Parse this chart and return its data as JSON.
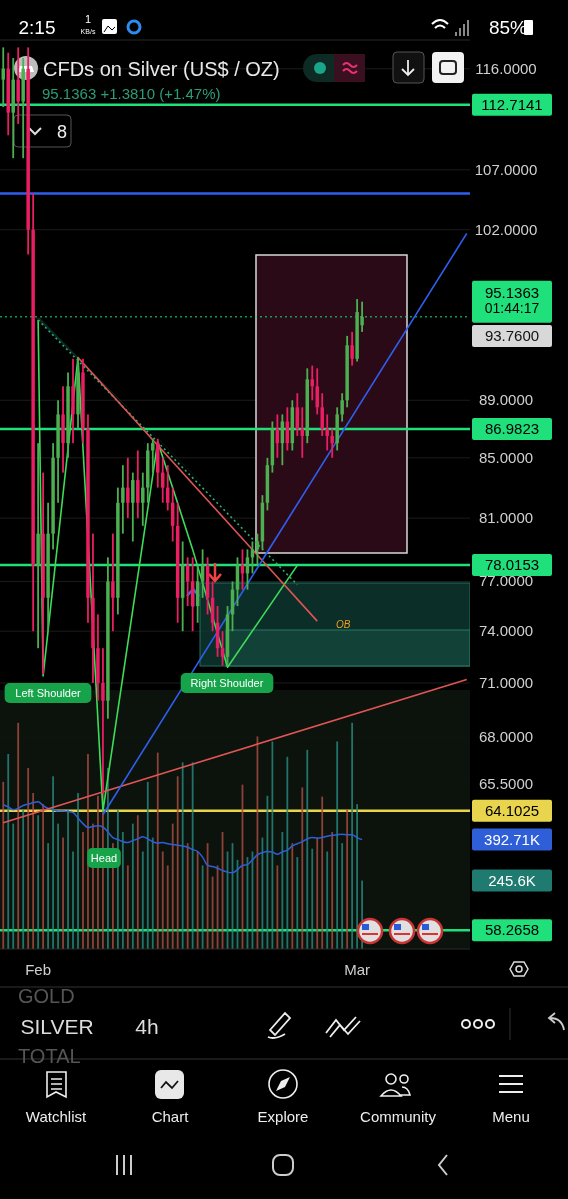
{
  "chart_data": {
    "type": "candlestick",
    "title": "CFDs on Silver (US$ / OZ)",
    "subtitle": "95.1363 +1.3810 (+1.47%)",
    "categories": [
      null,
      null,
      null,
      null,
      null,
      null,
      null,
      "Feb",
      null,
      null,
      null,
      null,
      null,
      null,
      null,
      null,
      null,
      null,
      null,
      null,
      null,
      null,
      null,
      null,
      null,
      null,
      null,
      null,
      null,
      null,
      null,
      null,
      null,
      null,
      null,
      null,
      null,
      null,
      null,
      null,
      null,
      null,
      null,
      null,
      null,
      null,
      null,
      null,
      null,
      null,
      null,
      null,
      null,
      null,
      null,
      null,
      null,
      null,
      null,
      null,
      null,
      null,
      null,
      null,
      null,
      null,
      null,
      null,
      null,
      null,
      null,
      "Mar",
      null,
      null,
      null,
      null,
      null,
      null,
      null,
      null,
      null,
      null,
      null,
      null,
      null,
      null,
      null,
      null,
      null,
      null,
      null,
      null,
      null,
      null
    ],
    "log": true,
    "ylim": [
      57.4,
      118.7
    ],
    "yticks": [
      {
        "value": 116,
        "label": "116.0000"
      },
      {
        "value": 107,
        "label": "107.0000"
      },
      {
        "value": 102,
        "label": "102.0000"
      },
      {
        "value": 89,
        "label": "89.0000"
      },
      {
        "value": 85,
        "label": "85.0000"
      },
      {
        "value": 81,
        "label": "81.0000"
      },
      {
        "value": 77,
        "label": "77.0000"
      },
      {
        "value": 74,
        "label": "74.0000"
      },
      {
        "value": 71,
        "label": "71.0000"
      },
      {
        "value": 68,
        "label": "68.0000"
      },
      {
        "value": 65.5,
        "label": "65.5000"
      }
    ],
    "y2lim": [
      0,
      3263
    ],
    "y2ticks": [
      {
        "value": 392.71,
        "label": "392.71K"
      },
      {
        "value": 245.6,
        "label": "245.6K"
      }
    ],
    "grid": "y",
    "series": [
      {
        "ohlc": [
          [
            115,
            118,
            112.5,
            116
          ],
          [
            116,
            117.5,
            110,
            112
          ],
          [
            112,
            117,
            108,
            115
          ],
          [
            115,
            118,
            111,
            113
          ],
          [
            113,
            117,
            108,
            116
          ],
          [
            116,
            118,
            100,
            102
          ],
          [
            102,
            105,
            74,
            78
          ],
          [
            78,
            86,
            73,
            80
          ],
          [
            80,
            84,
            71.5,
            76
          ],
          [
            76,
            82,
            74,
            80
          ],
          [
            80,
            86,
            79,
            85
          ],
          [
            85,
            89,
            82,
            88
          ],
          [
            88,
            90,
            84,
            86
          ],
          [
            86,
            91,
            85,
            90
          ],
          [
            90,
            92,
            86,
            88
          ],
          [
            88,
            92,
            87,
            91
          ],
          [
            91,
            92,
            86,
            87
          ],
          [
            87,
            88,
            74.5,
            76
          ],
          [
            76,
            80,
            71,
            73
          ],
          [
            73,
            75,
            70,
            71
          ],
          [
            71,
            73,
            65,
            70
          ],
          [
            70,
            78.5,
            69,
            77
          ],
          [
            77,
            80,
            74,
            76
          ],
          [
            76,
            83,
            75,
            82
          ],
          [
            82,
            84.5,
            80,
            83
          ],
          [
            83,
            85,
            81,
            82
          ],
          [
            82,
            84,
            79.5,
            83.5
          ],
          [
            83.5,
            85.5,
            81,
            82
          ],
          [
            82,
            84,
            80.5,
            83
          ],
          [
            83,
            86,
            82,
            85.5
          ],
          [
            85.5,
            86.3,
            84,
            86
          ],
          [
            86,
            86.3,
            83,
            84
          ],
          [
            84,
            85,
            82,
            83
          ],
          [
            83,
            84.5,
            81.5,
            82
          ],
          [
            82,
            83,
            79.5,
            80.5
          ],
          [
            80.5,
            82,
            74.5,
            76
          ],
          [
            76,
            79.5,
            74,
            78
          ],
          [
            78,
            78.5,
            75.5,
            77
          ],
          [
            77,
            78.5,
            74,
            75.5
          ],
          [
            75.5,
            78,
            74.5,
            77
          ],
          [
            77,
            79,
            76,
            78
          ],
          [
            78,
            78.5,
            75,
            76
          ],
          [
            76,
            77,
            74,
            74.5
          ],
          [
            74.5,
            75.5,
            72.5,
            73
          ],
          [
            73,
            74,
            72,
            72.5
          ],
          [
            72.5,
            75.5,
            72,
            75
          ],
          [
            75,
            77,
            74,
            76.5
          ],
          [
            76.5,
            78.5,
            75.5,
            78
          ],
          [
            78,
            79,
            76.5,
            77.5
          ],
          [
            77.5,
            79,
            76.5,
            78.5
          ],
          [
            78.5,
            79.5,
            77.5,
            79
          ],
          [
            79,
            80,
            78,
            79.5
          ],
          [
            79.5,
            82.5,
            79,
            82
          ],
          [
            82,
            85,
            81.5,
            84.5
          ],
          [
            84.5,
            87.5,
            84,
            87
          ],
          [
            87,
            88,
            85,
            86
          ],
          [
            86,
            88,
            84.5,
            87.5
          ],
          [
            87.5,
            88.5,
            85.5,
            86
          ],
          [
            86,
            89,
            85.5,
            88.5
          ],
          [
            88.5,
            89.5,
            86.5,
            87
          ],
          [
            87,
            88.5,
            85,
            86.5
          ],
          [
            86.5,
            91.3,
            86,
            90.5
          ],
          [
            90.5,
            91.5,
            89,
            90
          ],
          [
            90,
            91.3,
            88,
            88.5
          ],
          [
            88.5,
            89.5,
            86.5,
            87
          ],
          [
            87,
            88,
            85.5,
            86.5
          ],
          [
            86.5,
            87,
            85,
            86
          ],
          [
            86,
            88.5,
            85.5,
            88
          ],
          [
            88,
            89.5,
            87.5,
            89
          ],
          [
            89,
            93.7,
            88.5,
            93
          ],
          [
            93,
            94,
            91.5,
            92
          ],
          [
            92,
            96.5,
            91.8,
            95.5
          ],
          [
            94.5,
            96.3,
            94,
            95.1363
          ],
          null,
          null,
          null,
          null,
          null,
          null,
          null,
          null,
          null,
          null,
          null,
          null,
          null,
          null,
          null,
          null,
          null,
          null,
          null,
          null,
          null
        ],
        "colors": [
          "#4caf50",
          "#e91e63",
          "#4caf50",
          "#e91e63",
          "#4caf50",
          "#e91e63",
          "#e91e63",
          "#4caf50",
          "#e91e63",
          "#4caf50",
          "#4caf50",
          "#4caf50",
          "#e91e63",
          "#4caf50",
          "#e91e63",
          "#4caf50",
          "#e91e63",
          "#e91e63",
          "#e91e63",
          "#e91e63",
          "#e91e63",
          "#4caf50",
          "#e91e63",
          "#4caf50",
          "#4caf50",
          "#e91e63",
          "#4caf50",
          "#e91e63",
          "#4caf50",
          "#4caf50",
          "#4caf50",
          "#e91e63",
          "#e91e63",
          "#e91e63",
          "#e91e63",
          "#e91e63",
          "#4caf50",
          "#e91e63",
          "#e91e63",
          "#4caf50",
          "#4caf50",
          "#e91e63",
          "#e91e63",
          "#e91e63",
          "#e91e63",
          "#4caf50",
          "#4caf50",
          "#4caf50",
          "#e91e63",
          "#4caf50",
          "#4caf50",
          "#4caf50",
          "#4caf50",
          "#4caf50",
          "#4caf50",
          "#e91e63",
          "#4caf50",
          "#e91e63",
          "#4caf50",
          "#e91e63",
          "#e91e63",
          "#4caf50",
          "#e91e63",
          "#e91e63",
          "#e91e63",
          "#e91e63",
          "#e91e63",
          "#4caf50",
          "#4caf50",
          "#4caf50",
          "#e91e63",
          "#4caf50",
          "#4caf50",
          null,
          null,
          null,
          null,
          null,
          null,
          null,
          null,
          null,
          null,
          null,
          null,
          null,
          null,
          null,
          null,
          null,
          null,
          null,
          null,
          null
        ]
      },
      {
        "type": "bar",
        "axis": "y2",
        "values": [
          600,
          700,
          450,
          812,
          500,
          650,
          560,
          480,
          520,
          380,
          620,
          450,
          400,
          500,
          350,
          560,
          420,
          700,
          450,
          550,
          600,
          650,
          380,
          500,
          420,
          300,
          450,
          480,
          350,
          600,
          400,
          705,
          350,
          300,
          450,
          620,
          670,
          380,
          670,
          350,
          300,
          380,
          260,
          300,
          420,
          350,
          380,
          320,
          590,
          330,
          350,
          763,
          400,
          550,
          745,
          300,
          420,
          690,
          380,
          330,
          580,
          715,
          360,
          400,
          547,
          350,
          420,
          745,
          380,
          500,
          812,
          520,
          245.6,
          null,
          null,
          null,
          null,
          null,
          null,
          null,
          null,
          null,
          null,
          null,
          null,
          null,
          null,
          null,
          null,
          null,
          null,
          null,
          null,
          null
        ],
        "colors": [
          "#a34b40",
          "#26857a",
          "#26857a",
          "#a34b40",
          "#26857a",
          "#a34b40",
          "#a34b40",
          "#26857a",
          "#a34b40",
          "#26857a",
          "#26857a",
          "#26857a",
          "#a34b40",
          "#26857a",
          "#26857a",
          "#26857a",
          "#a34b40",
          "#a34b40",
          "#a34b40",
          "#a34b40",
          "#a34b40",
          "#26857a",
          "#a34b40",
          "#26857a",
          "#26857a",
          "#a34b40",
          "#26857a",
          "#a34b40",
          "#26857a",
          "#26857a",
          "#26857a",
          "#a34b40",
          "#a34b40",
          "#a34b40",
          "#a34b40",
          "#a34b40",
          "#26857a",
          "#a34b40",
          "#26857a",
          "#a34b40",
          "#26857a",
          "#a34b40",
          "#a34b40",
          "#a34b40",
          "#a34b40",
          "#26857a",
          "#26857a",
          "#26857a",
          "#a34b40",
          "#26857a",
          "#26857a",
          "#a34b40",
          "#26857a",
          "#26857a",
          "#26857a",
          "#a34b40",
          "#26857a",
          "#26857a",
          "#a34b40",
          "#26857a",
          "#a34b40",
          "#26857a",
          "#26857a",
          "#a34b40",
          "#a34b40",
          "#26857a",
          "#a34b40",
          "#26857a",
          "#26857a",
          "#a34b40",
          "#26857a",
          "#26857a",
          "#26857a",
          null,
          null,
          null,
          null,
          null,
          null,
          null,
          null,
          null,
          null,
          null,
          null,
          null,
          null,
          null,
          null,
          null,
          null,
          null,
          null,
          null
        ]
      },
      {
        "type": "line",
        "axis": "y2",
        "color": "#2f5fd8",
        "values": [
          518,
          510,
          500,
          505,
          515,
          520,
          525,
          529,
          515,
          505,
          500,
          495,
          495,
          493,
          490,
          470,
          450,
          436,
          440,
          442,
          438,
          420,
          400,
          393,
          385,
          382,
          390,
          395,
          403,
          395,
          385,
          380,
          382,
          378,
          375,
          372,
          370,
          365,
          357,
          350,
          330,
          300,
          296,
          290,
          282,
          276,
          274,
          285,
          300,
          303,
          320,
          338,
          346,
          350,
          348,
          340,
          349,
          355,
          370,
          378,
          385,
          395,
          400,
          398,
          400,
          405,
          408,
          410,
          412,
          410,
          410,
          400,
          392.71,
          null,
          null,
          null,
          null,
          null,
          null,
          null,
          null,
          null,
          null,
          null,
          null,
          null,
          null,
          null,
          null,
          null,
          null,
          null,
          null,
          null
        ]
      },
      {
        "type": "line",
        "color": "#3ddc57",
        "values": [
          null,
          null,
          null,
          null,
          null,
          null,
          null,
          94.9,
          71.4,
          null,
          null,
          null,
          null,
          null,
          null,
          92.1,
          null,
          null,
          null,
          null,
          64.1,
          null,
          null,
          null,
          null,
          null,
          null,
          null,
          null,
          null,
          null,
          86.1,
          null,
          null,
          null,
          null,
          null,
          null,
          79.0,
          null,
          null,
          null,
          null,
          null,
          null,
          71.9,
          null,
          null,
          null,
          null,
          null,
          null,
          null,
          null,
          null,
          null,
          null,
          null,
          null,
          78.0,
          null,
          null,
          null,
          null,
          null,
          null,
          null,
          null,
          null,
          null,
          null,
          null,
          null,
          null,
          null,
          null,
          null,
          null,
          null,
          null,
          null,
          null,
          null,
          null,
          null,
          null,
          null,
          null,
          null,
          null,
          null,
          null,
          null,
          null
        ]
      },
      {
        "type": "line",
        "color": "#2fae6a",
        "line_style": "dotted",
        "values": [
          null,
          null,
          null,
          null,
          null,
          null,
          null,
          94.9,
          null,
          null,
          null,
          null,
          null,
          null,
          null,
          null,
          null,
          null,
          null,
          null,
          null,
          null,
          null,
          null,
          null,
          null,
          null,
          null,
          null,
          null,
          null,
          null,
          null,
          null,
          null,
          null,
          null,
          null,
          null,
          null,
          null,
          null,
          null,
          null,
          null,
          null,
          null,
          null,
          null,
          null,
          null,
          null,
          null,
          null,
          null,
          null,
          null,
          null,
          null,
          76.8,
          null,
          null,
          null,
          null,
          null,
          null,
          null,
          null,
          null,
          null,
          null,
          null,
          null,
          null,
          null,
          null,
          null,
          null,
          null,
          null,
          null,
          null,
          null,
          null,
          null,
          null,
          null,
          null,
          null,
          null,
          null,
          null,
          null,
          null
        ]
      },
      {
        "type": "line",
        "color": "#e05555",
        "values": [
          null,
          null,
          null,
          null,
          null,
          null,
          null,
          null,
          null,
          null,
          null,
          null,
          null,
          null,
          null,
          92.1,
          null,
          null,
          null,
          null,
          null,
          null,
          null,
          null,
          null,
          null,
          null,
          null,
          null,
          null,
          null,
          null,
          null,
          null,
          null,
          null,
          null,
          null,
          null,
          null,
          null,
          null,
          null,
          null,
          null,
          null,
          null,
          null,
          null,
          null,
          null,
          null,
          null,
          null,
          null,
          null,
          null,
          null,
          null,
          null,
          null,
          null,
          null,
          74.6,
          null,
          null,
          null,
          null,
          null,
          null,
          null,
          null,
          null,
          null,
          null,
          null,
          null,
          null,
          null,
          null,
          null,
          null,
          null,
          null,
          null,
          null,
          null,
          null,
          null,
          null,
          null,
          null,
          null,
          null
        ]
      },
      {
        "type": "line",
        "color": "#e05555",
        "values": [
          63.5,
          null,
          null,
          null,
          null,
          null,
          null,
          null,
          null,
          null,
          null,
          null,
          null,
          null,
          null,
          null,
          null,
          null,
          null,
          null,
          null,
          null,
          null,
          null,
          null,
          null,
          null,
          null,
          null,
          null,
          null,
          null,
          null,
          null,
          null,
          null,
          null,
          null,
          null,
          null,
          null,
          null,
          null,
          null,
          null,
          null,
          null,
          null,
          null,
          null,
          null,
          null,
          null,
          null,
          null,
          null,
          null,
          null,
          null,
          null,
          null,
          null,
          null,
          null,
          null,
          null,
          null,
          null,
          null,
          null,
          null,
          null,
          null,
          null,
          null,
          null,
          null,
          null,
          null,
          null,
          null,
          null,
          null,
          null,
          null,
          null,
          null,
          null,
          null,
          null,
          null,
          null,
          null,
          71.2
        ]
      },
      {
        "type": "line",
        "color": "#2f5ff0",
        "values": [
          null,
          null,
          null,
          null,
          null,
          null,
          null,
          null,
          null,
          null,
          null,
          null,
          null,
          null,
          null,
          null,
          null,
          null,
          null,
          null,
          63.9,
          null,
          null,
          null,
          null,
          null,
          null,
          null,
          null,
          null,
          null,
          null,
          null,
          null,
          null,
          null,
          null,
          null,
          null,
          null,
          null,
          null,
          null,
          null,
          null,
          null,
          null,
          null,
          null,
          null,
          null,
          null,
          null,
          null,
          null,
          null,
          null,
          null,
          null,
          null,
          null,
          null,
          null,
          null,
          null,
          null,
          null,
          null,
          null,
          null,
          null,
          null,
          null,
          null,
          null,
          null,
          null,
          null,
          null,
          null,
          null,
          null,
          null,
          null,
          null,
          null,
          null,
          null,
          null,
          null,
          null,
          null,
          null,
          101.7
        ]
      }
    ],
    "ref_lines": [
      {
        "axis": "y",
        "value": 112.7141,
        "label": "112.7141",
        "color": "#1fe07a",
        "line_style": "solid"
      },
      {
        "axis": "y",
        "value": 105,
        "color": "#2f5ff0",
        "line_style": "solid"
      },
      {
        "axis": "y",
        "value": 95.1363,
        "label": "95.1363",
        "color": "#1fe07a",
        "line_style": "dotted"
      },
      {
        "axis": "y",
        "value": 86.9823,
        "label": "86.9823",
        "color": "#1fe07a",
        "line_style": "solid"
      },
      {
        "axis": "y",
        "value": 78.0153,
        "label": "78.0153",
        "color": "#1fe07a",
        "line_style": "solid"
      },
      {
        "axis": "y",
        "value": 64.1025,
        "label": "64.1025",
        "color": "#e8d44d",
        "line_style": "solid"
      },
      {
        "axis": "y",
        "value": 58.2658,
        "label": "58.2658",
        "color": "#1fe07a",
        "line_style": "solid"
      }
    ],
    "annotations": [
      "Left Shoulder",
      "Right Shoulder",
      "Head",
      "OB",
      "8",
      "01:44:17",
      "2:15",
      "1",
      "KB/s",
      "85%",
      "GOLD",
      "SILVER",
      "4h",
      "TOTAL",
      "Watchlist",
      "Chart",
      "Explore",
      "Community",
      "Menu",
      "93.7600"
    ]
  }
}
